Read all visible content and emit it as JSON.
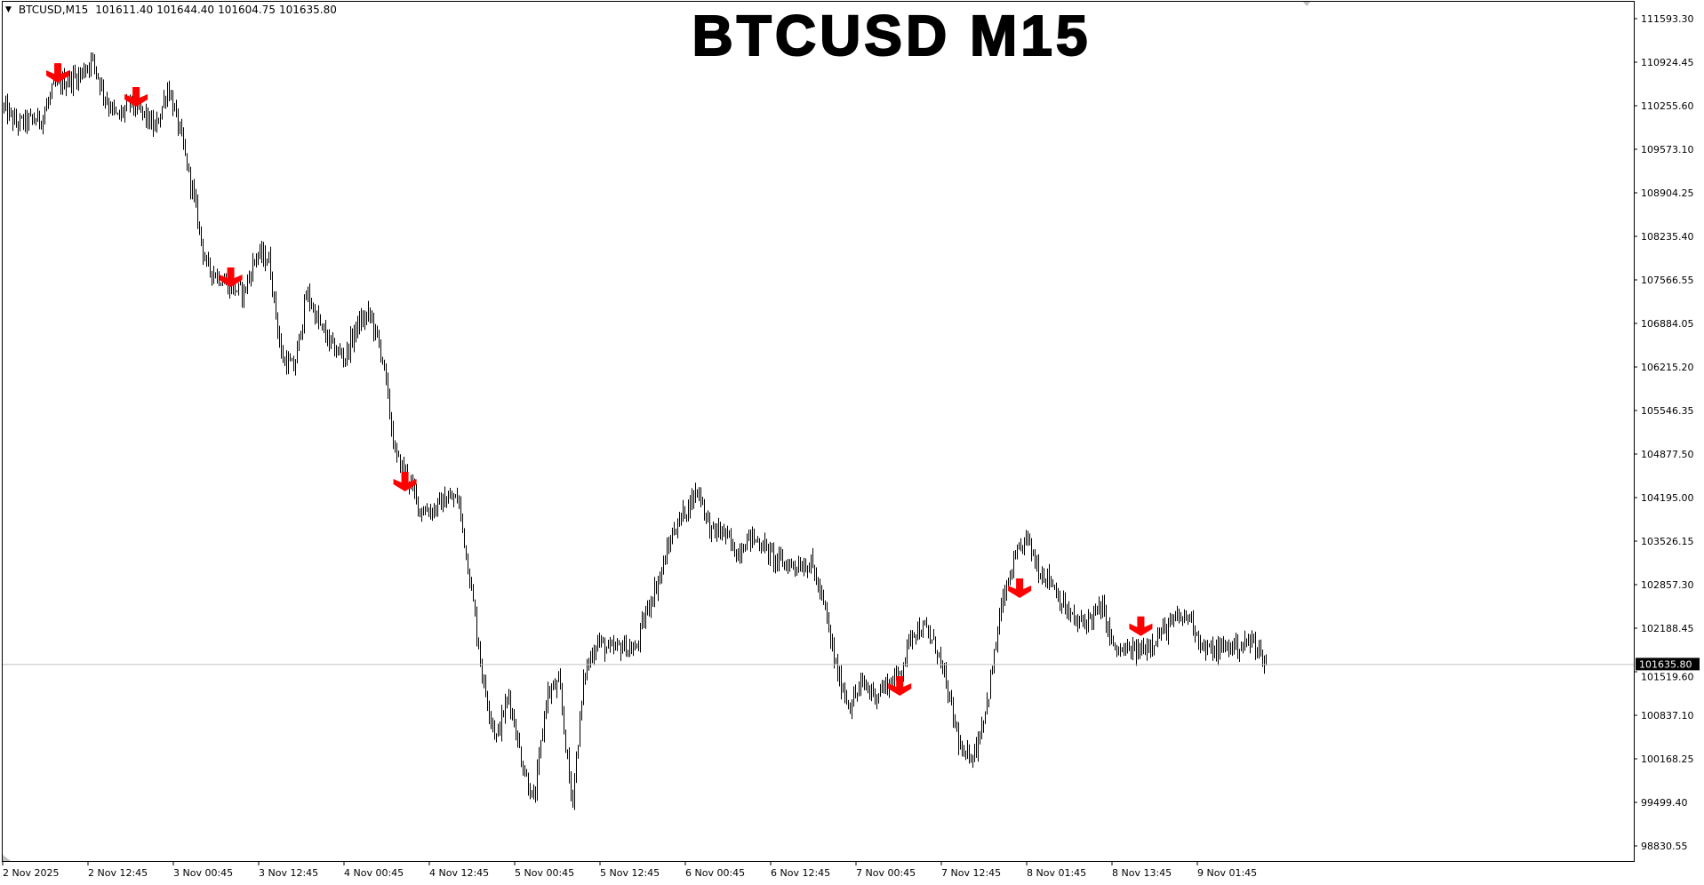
{
  "header": {
    "symbol": "BTCUSD,M15",
    "open": "101611.40",
    "high": "101644.40",
    "low": "101604.75",
    "close": "101635.80"
  },
  "title": "BTCUSD M15",
  "current_price_label": "101635.80",
  "colors": {
    "bars": "#000000",
    "signal_arrows": "#ff0000",
    "price_line": "#c0c0c0",
    "price_label_bg": "#000000",
    "background": "#ffffff"
  },
  "chart_data": {
    "type": "bar",
    "bar_style": "OHLC bars",
    "timeframe": "M15",
    "ylim": [
      98830.55,
      111593.3
    ],
    "grid": false,
    "y_ticks": [
      "111593.30",
      "110924.45",
      "110255.60",
      "109573.10",
      "108904.25",
      "108235.40",
      "107566.55",
      "106884.05",
      "106215.20",
      "105546.35",
      "104877.50",
      "104195.00",
      "103526.15",
      "102857.30",
      "102188.45",
      "101519.60",
      "100837.10",
      "100168.25",
      "99499.40",
      "98830.55"
    ],
    "x_ticks": [
      "2 Nov 2025",
      "2 Nov 12:45",
      "3 Nov 00:45",
      "3 Nov 12:45",
      "4 Nov 00:45",
      "4 Nov 12:45",
      "5 Nov 00:45",
      "5 Nov 12:45",
      "6 Nov 00:45",
      "6 Nov 12:45",
      "7 Nov 00:45",
      "7 Nov 12:45",
      "8 Nov 01:45",
      "8 Nov 13:45",
      "9 Nov 01:45"
    ],
    "current_price": 101635.8,
    "approx_closes_2h": [
      110218,
      109966,
      110017,
      110050,
      110553,
      110637,
      110721,
      110972,
      110386,
      110050,
      110302,
      110134,
      109883,
      110553,
      109799,
      108876,
      107786,
      107618,
      107451,
      107367,
      107954,
      107870,
      106361,
      106193,
      107367,
      106864,
      106529,
      106361,
      106864,
      107032,
      106361,
      104851,
      104516,
      104013,
      104013,
      104180,
      104180,
      102839,
      101330,
      100491,
      101162,
      100156,
      99485,
      101162,
      101330,
      99485,
      101497,
      102000,
      101833,
      101917,
      101833,
      102504,
      103006,
      103677,
      104013,
      104348,
      103677,
      103677,
      103342,
      103593,
      103510,
      103258,
      103174,
      103174,
      103174,
      102504,
      101497,
      100994,
      101330,
      101162,
      101330,
      101497,
      102168,
      102168,
      101833,
      100994,
      100156,
      100323,
      101162,
      102504,
      103174,
      103593,
      103090,
      102922,
      102504,
      102252,
      102336,
      102504,
      101833,
      101833,
      101833,
      102000,
      102168,
      102336,
      102370,
      101867,
      101833,
      101917,
      101917,
      102000,
      101635.8
    ],
    "sell_signals": [
      {
        "index": 4.3,
        "price": 110687
      },
      {
        "index": 10.5,
        "price": 110319
      },
      {
        "index": 18.0,
        "price": 107535
      },
      {
        "index": 31.8,
        "price": 104382
      },
      {
        "index": 71.0,
        "price": 101229
      },
      {
        "index": 80.5,
        "price": 102738
      },
      {
        "index": 90.1,
        "price": 102151
      }
    ]
  }
}
